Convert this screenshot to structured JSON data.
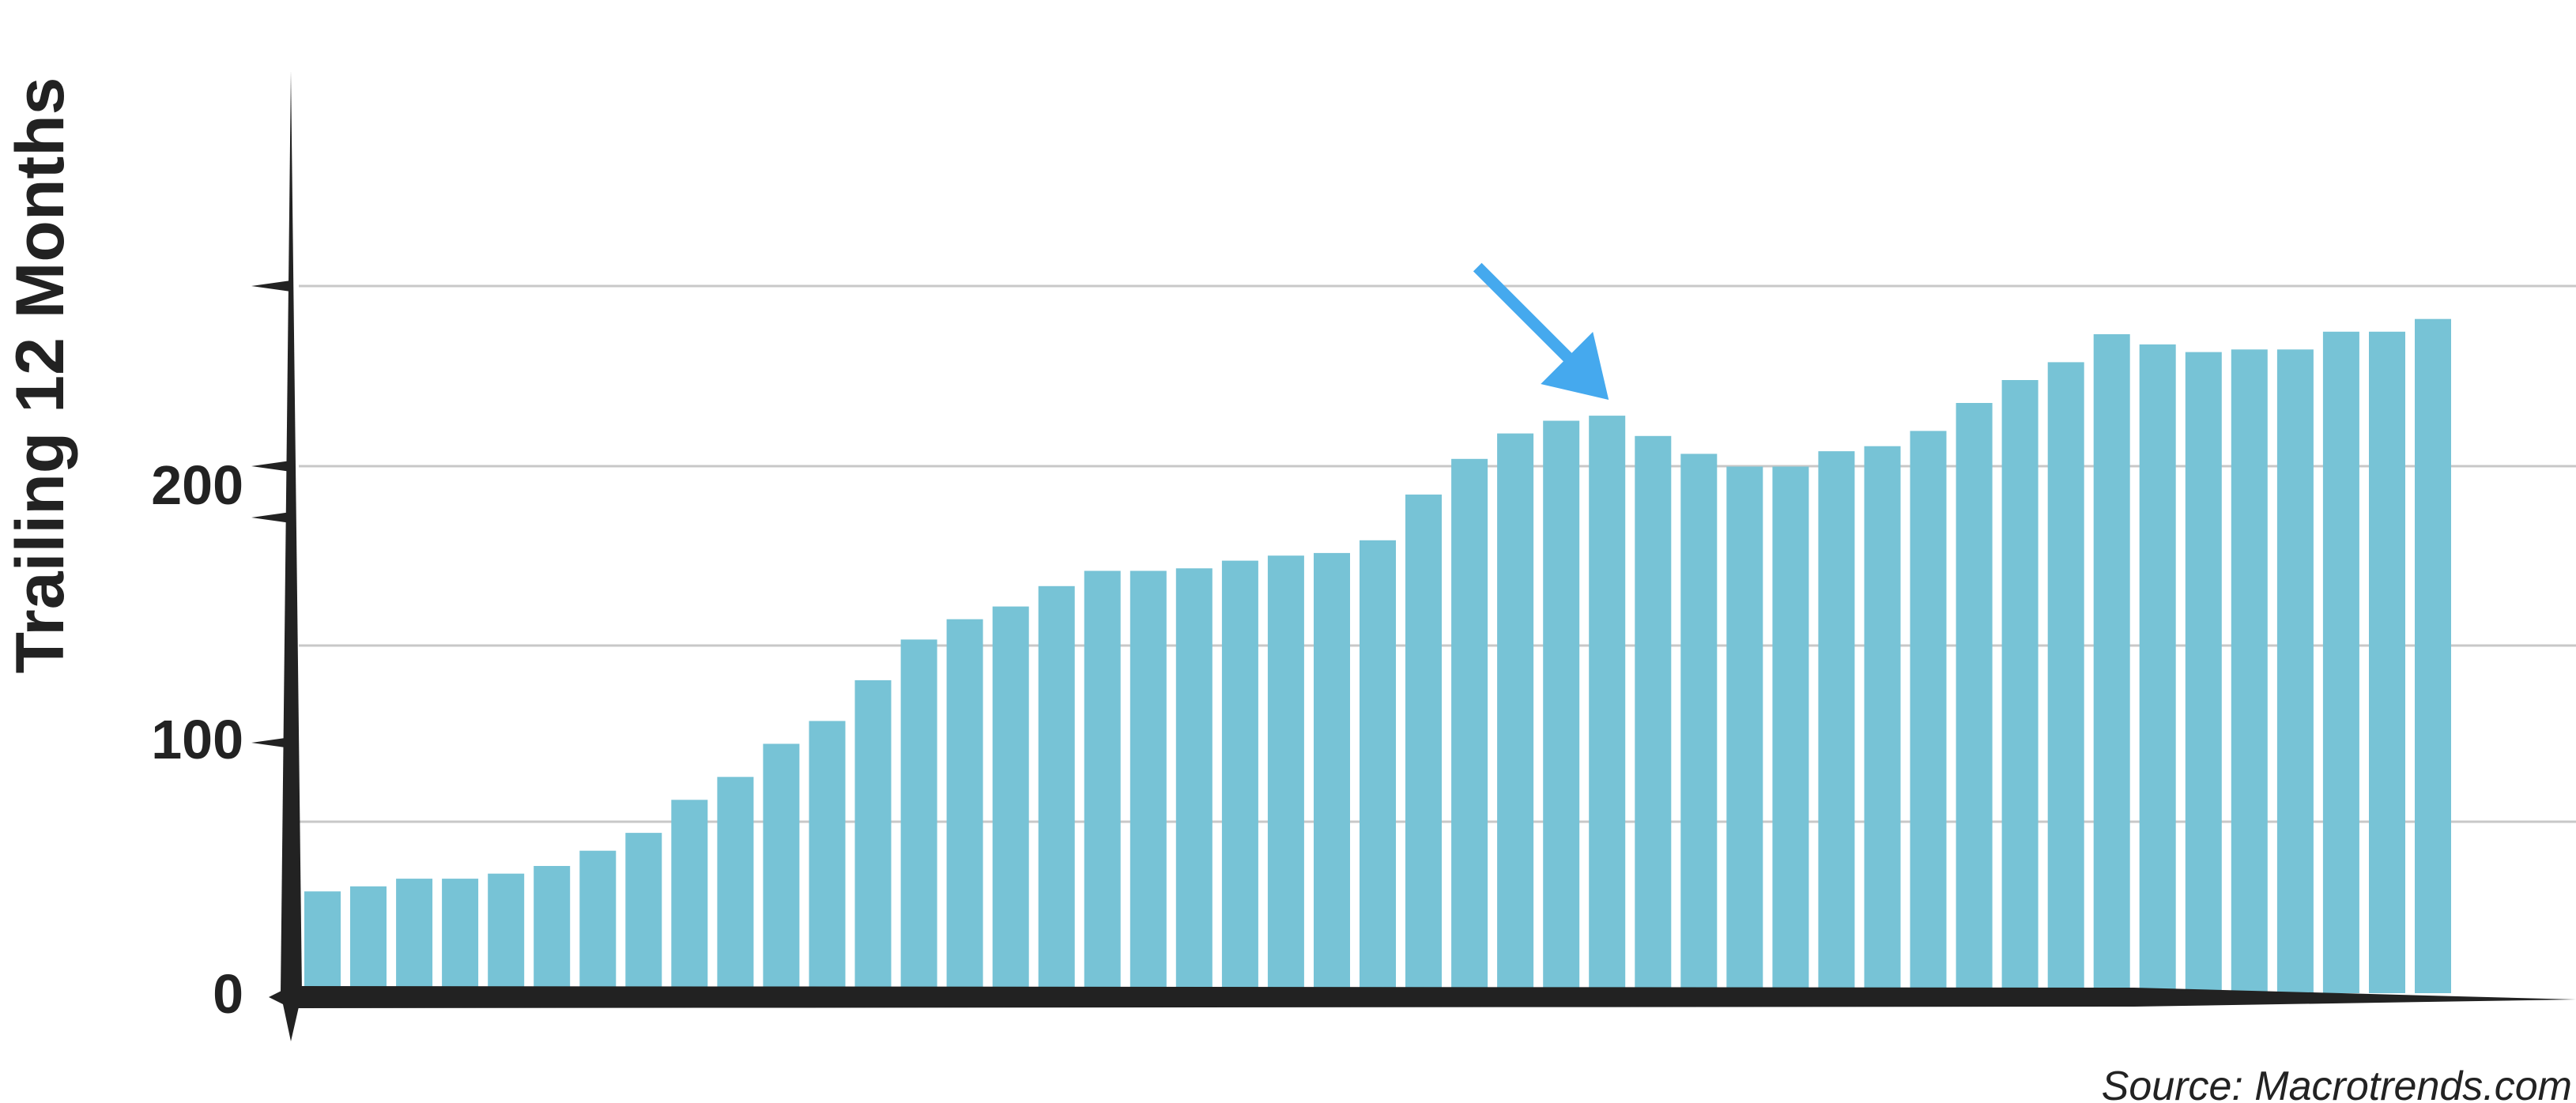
{
  "chart_data": {
    "type": "bar",
    "ylabel": "Trailing 12 Months",
    "yticks": [
      0,
      100,
      200
    ],
    "ylim": [
      0,
      300
    ],
    "grid": true,
    "bar_color": "#77c3d6",
    "arrow_color": "#45a9ee",
    "axis_color": "#222222",
    "values": [
      40,
      42,
      45,
      45,
      47,
      50,
      56,
      63,
      76,
      85,
      98,
      107,
      123,
      139,
      147,
      152,
      160,
      166,
      166,
      167,
      170,
      172,
      173,
      178,
      196,
      210,
      220,
      225,
      227,
      219,
      212,
      207,
      207,
      213,
      215,
      221,
      232,
      241,
      248,
      259,
      255,
      252,
      253,
      253,
      260,
      260,
      265
    ],
    "highlight_index": 28,
    "source": "Source: Macrotrends.com"
  }
}
